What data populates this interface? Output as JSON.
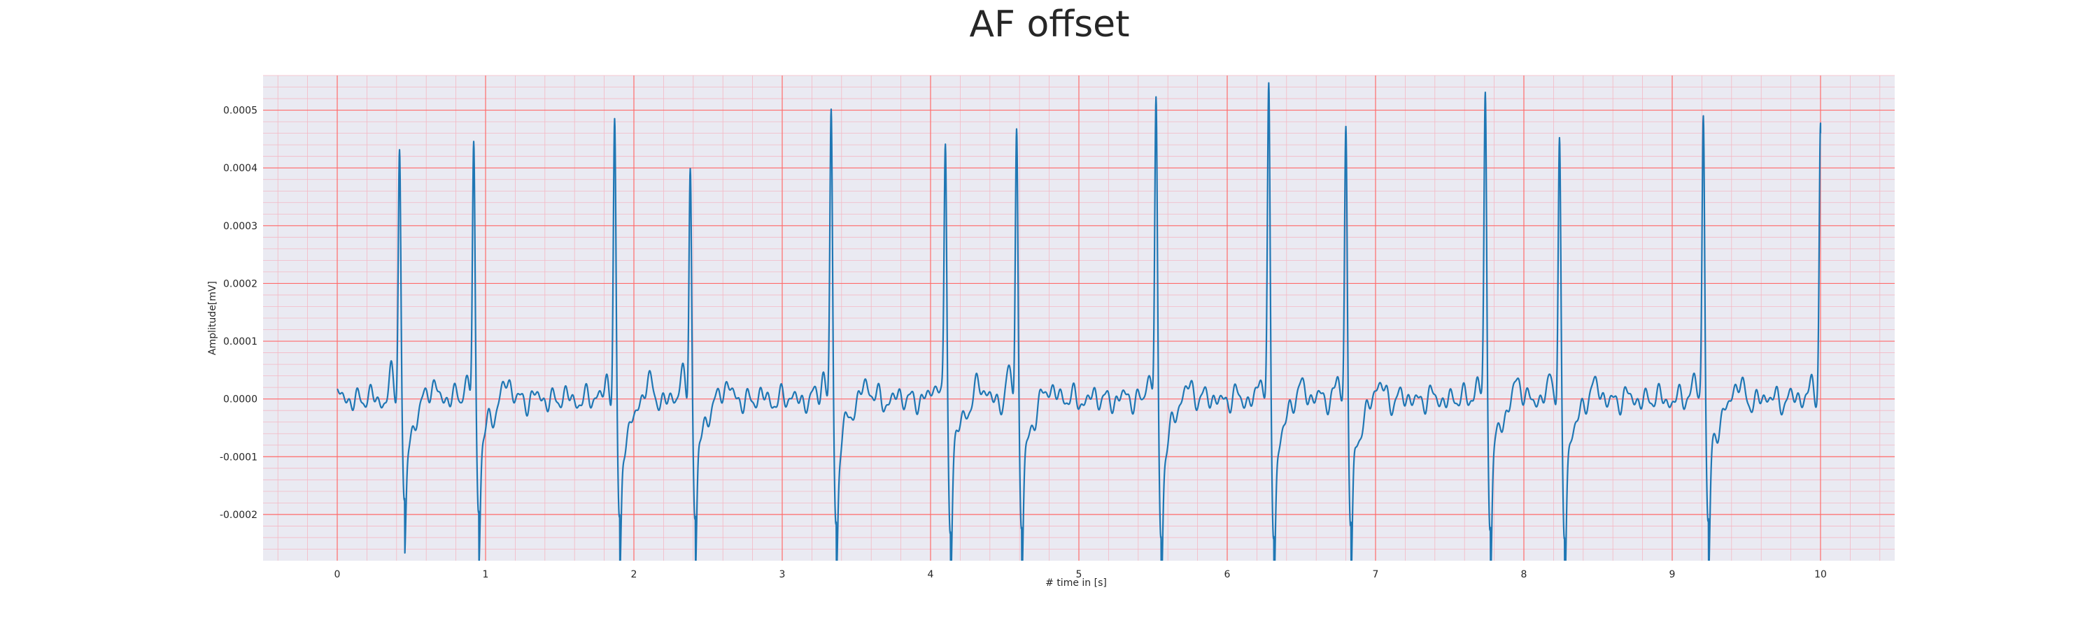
{
  "chart_data": {
    "type": "line",
    "title": "AF offset",
    "xlabel": "# time in [s]",
    "ylabel": "Amplitude[mV]",
    "xlim": [
      -0.5,
      10.5
    ],
    "ylim": [
      -0.00028,
      0.00056
    ],
    "x_ticks": [
      0,
      1,
      2,
      3,
      4,
      5,
      6,
      7,
      8,
      9,
      10
    ],
    "y_ticks": [
      -0.0002,
      -0.0001,
      0.0,
      0.0001,
      0.0002,
      0.0003,
      0.0004,
      0.0005
    ],
    "x_tick_labels": [
      "0",
      "1",
      "2",
      "3",
      "4",
      "5",
      "6",
      "7",
      "8",
      "9",
      "10"
    ],
    "y_tick_labels": [
      "-0.0002",
      "-0.0001",
      "0.0000",
      "0.0001",
      "0.0002",
      "0.0003",
      "0.0004",
      "0.0005"
    ],
    "grid": true,
    "colors": {
      "background": "#eaeaf2",
      "major_grid": "#ff6b6b",
      "minor_grid": "#f4b8c4",
      "line": "#1f77b4"
    },
    "r_peaks": [
      {
        "t": 0.42,
        "peak": 0.000433,
        "trough": -0.00019
      },
      {
        "t": 0.92,
        "peak": 0.000447,
        "trough": -0.000192
      },
      {
        "t": 1.87,
        "peak": 0.000482,
        "trough": -0.000225
      },
      {
        "t": 2.38,
        "peak": 0.000418,
        "trough": -0.000208
      },
      {
        "t": 3.33,
        "peak": 0.000502,
        "trough": -0.000218
      },
      {
        "t": 4.1,
        "peak": 0.000443,
        "trough": -0.00022
      },
      {
        "t": 4.58,
        "peak": 0.000477,
        "trough": -0.00022
      },
      {
        "t": 5.52,
        "peak": 0.000516,
        "trough": -0.000235
      },
      {
        "t": 6.28,
        "peak": 0.000522,
        "trough": -0.000228
      },
      {
        "t": 6.8,
        "peak": 0.000465,
        "trough": -0.000228
      },
      {
        "t": 7.74,
        "peak": 0.000514,
        "trough": -0.000213
      },
      {
        "t": 8.24,
        "peak": 0.000452,
        "trough": -0.00024
      },
      {
        "t": 9.21,
        "peak": 0.000506,
        "trough": -0.000225
      },
      {
        "t": 10.0,
        "peak": 0.00046,
        "trough": null
      }
    ],
    "baseline_noise_amplitude": 2e-05
  }
}
